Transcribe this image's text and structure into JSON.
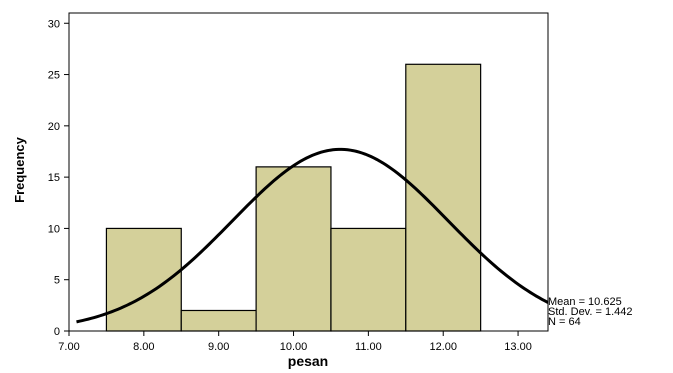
{
  "chart_data": {
    "type": "bar",
    "xlabel": "pesan",
    "ylabel": "Frequency",
    "xlim": [
      7.0,
      13.4
    ],
    "ylim": [
      0,
      31
    ],
    "x_ticks": [
      "7.00",
      "8.00",
      "9.00",
      "10.00",
      "11.00",
      "12.00",
      "13.00"
    ],
    "y_ticks": [
      "0",
      "5",
      "10",
      "15",
      "20",
      "25",
      "30"
    ],
    "bins": [
      {
        "from": 7.5,
        "to": 8.5,
        "value": 10
      },
      {
        "from": 8.5,
        "to": 9.5,
        "value": 2
      },
      {
        "from": 9.5,
        "to": 10.5,
        "value": 16
      },
      {
        "from": 10.5,
        "to": 11.5,
        "value": 10
      },
      {
        "from": 11.5,
        "to": 12.5,
        "value": 26
      }
    ],
    "bar_color": "#d4d09a",
    "normal_curve": {
      "mean": 10.625,
      "std_dev": 1.442,
      "n": 64,
      "bin_width": 1.0,
      "x_range": [
        7.1,
        13.4
      ]
    },
    "stats": [
      "Mean = 10.625",
      "Std. Dev. = 1.442",
      "N = 64"
    ],
    "grid": false
  }
}
